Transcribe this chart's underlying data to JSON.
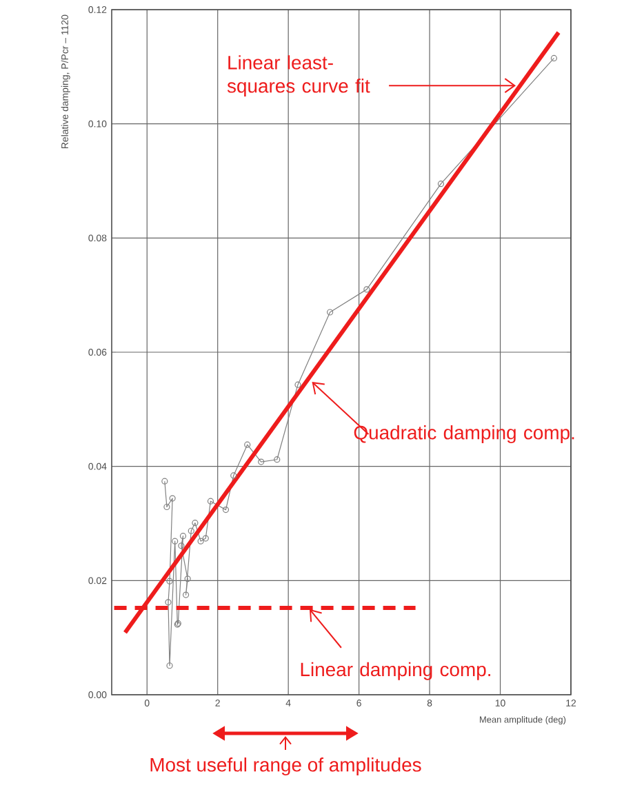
{
  "chart_data": {
    "type": "line",
    "xlabel": "Mean amplitude (deg)",
    "ylabel": "Relative damping, P/Pcr – 1120",
    "xlim": [
      -1,
      12
    ],
    "ylim": [
      0,
      0.12
    ],
    "xticks": [
      0,
      2,
      4,
      6,
      8,
      10,
      12
    ],
    "yticks": [
      {
        "value": 0,
        "label": "0.00"
      },
      {
        "value": 0.02,
        "label": "0.02"
      },
      {
        "value": 0.04,
        "label": "0.04"
      },
      {
        "value": 0.06,
        "label": "0.06"
      },
      {
        "value": 0.08,
        "label": "0.08"
      },
      {
        "value": 0.1,
        "label": "0.10"
      },
      {
        "value": 0.12,
        "label": "0.12"
      }
    ],
    "grid": true,
    "series": [
      {
        "color": "#808080",
        "marker": "circle",
        "x": [
          0.5,
          0.56,
          0.72,
          0.64,
          0.6,
          0.64,
          0.79,
          0.86,
          0.88,
          1.02,
          0.97,
          1.15,
          1.1,
          1.25,
          1.36,
          1.52,
          1.66,
          1.8,
          2.23,
          2.45,
          2.84,
          3.23,
          3.68,
          4.27,
          5.18,
          6.22,
          8.32,
          11.52
        ],
        "values": [
          0.0374,
          0.0329,
          0.0344,
          0.0199,
          0.0162,
          0.0051,
          0.0269,
          0.0123,
          0.0125,
          0.0278,
          0.0261,
          0.0203,
          0.0175,
          0.0287,
          0.0301,
          0.0269,
          0.0274,
          0.0339,
          0.0324,
          0.0384,
          0.0438,
          0.0408,
          0.0412,
          0.0543,
          0.067,
          0.071,
          0.0895,
          0.1115
        ]
      },
      {
        "color": "#ee1c1c",
        "marker": "none",
        "x": [
          -0.62,
          11.65
        ],
        "values": [
          0.0109,
          0.116
        ]
      },
      {
        "color": "#ee1c1c",
        "marker": "none",
        "line_style": "dashed",
        "x": [
          -0.93,
          7.6
        ],
        "values": [
          0.0152,
          0.0152
        ]
      }
    ],
    "annotations": [
      {
        "text": "Linear least-squares curve fit",
        "x": 10.44,
        "y": 0.1067
      },
      {
        "text": "Quadratic damping comp.",
        "x": 4.67,
        "y": 0.0548
      },
      {
        "text": "Linear damping comp.",
        "x": 4.6,
        "y": 0.015
      },
      "Most useful range of amplitudes"
    ]
  }
}
